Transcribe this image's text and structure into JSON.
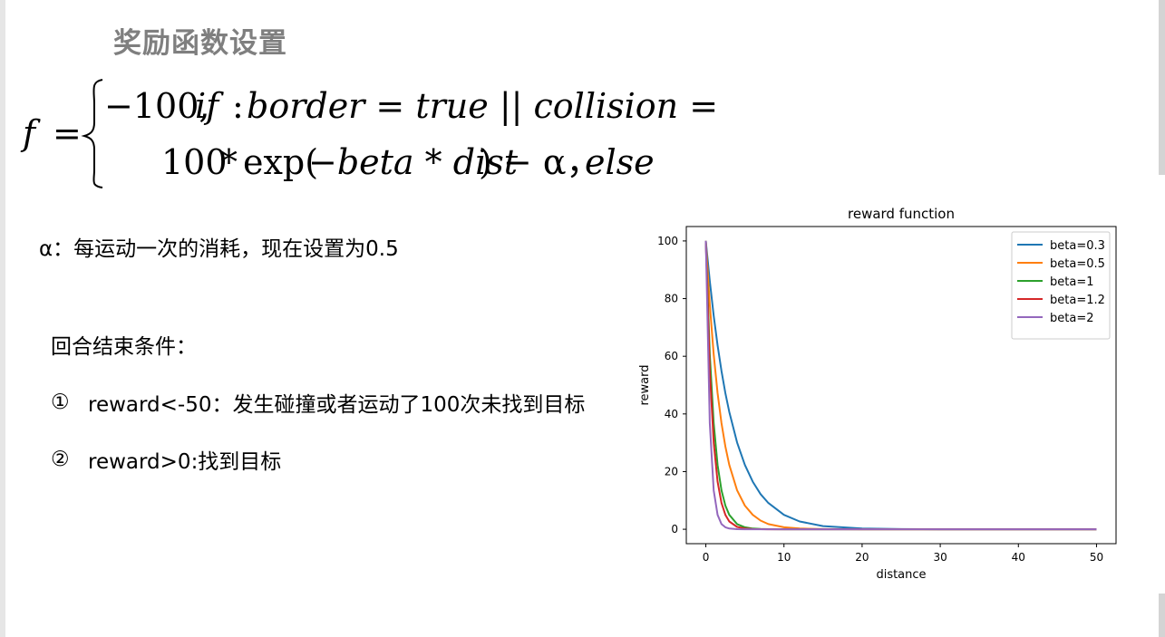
{
  "slide": {
    "title": "奖励函数设置",
    "formula": {
      "lhs": "f",
      "eq": "=",
      "case1_value": "−100,",
      "case1_if": "if",
      "case1_colon": ":",
      "case1_cond": "border = true || collision = true",
      "case2_num": "100",
      "case2_star": "*",
      "case2_exp": "exp(",
      "case2_arg": "−beta * dist",
      "case2_rest": ") − α，",
      "case2_else": "else"
    },
    "alpha_note": "α：每运动一次的消耗，现在设置为0.5",
    "end_title": "回合结束条件：",
    "conditions": [
      {
        "num": "①",
        "text": "reward<-50：发生碰撞或者运动了100次未找到目标"
      },
      {
        "num": "②",
        "text": "reward>0:找到目标"
      }
    ]
  },
  "chart_data": {
    "type": "line",
    "title": "reward function",
    "xlabel": "distance",
    "ylabel": "reward",
    "xlim": [
      -2.5,
      52.5
    ],
    "ylim": [
      -5,
      105
    ],
    "xticks": [
      0,
      10,
      20,
      30,
      40,
      50
    ],
    "yticks": [
      0,
      20,
      40,
      60,
      80,
      100
    ],
    "legend_position": "top-right",
    "grid": false,
    "function": "100*exp(-beta*distance)",
    "x": [
      0,
      0.5,
      1,
      1.5,
      2,
      2.5,
      3,
      4,
      5,
      6,
      7,
      8,
      10,
      12,
      15,
      20,
      25,
      30,
      40,
      50
    ],
    "series": [
      {
        "name": "beta=0.3",
        "color": "#1f77b4",
        "values": [
          100,
          86.1,
          74.1,
          63.8,
          54.9,
          47.2,
          40.7,
          30.1,
          22.3,
          16.5,
          12.2,
          9.1,
          5.0,
          2.7,
          1.1,
          0.25,
          0.06,
          0.01,
          0,
          0
        ]
      },
      {
        "name": "beta=0.5",
        "color": "#ff7f0e",
        "values": [
          100,
          77.9,
          60.7,
          47.2,
          36.8,
          28.7,
          22.3,
          13.5,
          8.2,
          5.0,
          3.0,
          1.8,
          0.7,
          0.25,
          0.06,
          0,
          0,
          0,
          0,
          0
        ]
      },
      {
        "name": "beta=1",
        "color": "#2ca02c",
        "values": [
          100,
          60.7,
          36.8,
          22.3,
          13.5,
          8.2,
          5.0,
          1.8,
          0.7,
          0.25,
          0.09,
          0.03,
          0,
          0,
          0,
          0,
          0,
          0,
          0,
          0
        ]
      },
      {
        "name": "beta=1.2",
        "color": "#d62728",
        "values": [
          100,
          54.9,
          30.1,
          16.5,
          9.1,
          5.0,
          2.7,
          0.8,
          0.25,
          0.07,
          0.02,
          0.01,
          0,
          0,
          0,
          0,
          0,
          0,
          0,
          0
        ]
      },
      {
        "name": "beta=2",
        "color": "#9467bd",
        "values": [
          100,
          36.8,
          13.5,
          5.0,
          1.8,
          0.7,
          0.25,
          0.03,
          0,
          0,
          0,
          0,
          0,
          0,
          0,
          0,
          0,
          0,
          0,
          0
        ]
      }
    ]
  }
}
